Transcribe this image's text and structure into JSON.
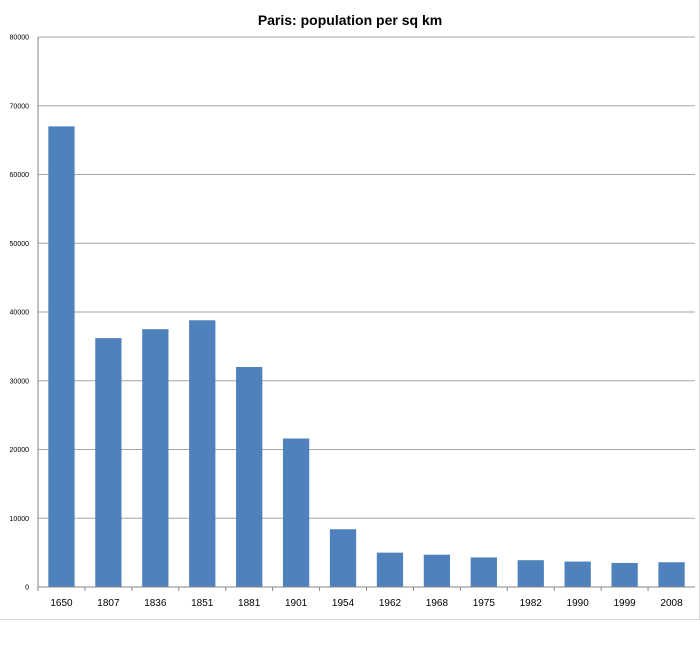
{
  "chart_data": {
    "type": "bar",
    "title": "Paris: population per sq km",
    "xlabel": "",
    "ylabel": "",
    "categories": [
      "1650",
      "1807",
      "1836",
      "1851",
      "1881",
      "1901",
      "1954",
      "1962",
      "1968",
      "1975",
      "1982",
      "1990",
      "1999",
      "2008"
    ],
    "values": [
      67000,
      36200,
      37500,
      38800,
      32000,
      21600,
      8400,
      5000,
      4700,
      4300,
      3900,
      3700,
      3500,
      3600
    ],
    "ylim": [
      0,
      80000
    ],
    "yticks": [
      "0",
      "10000",
      "20000",
      "30000",
      "40000",
      "50000",
      "60000",
      "70000",
      "80000"
    ],
    "grid": true,
    "legend": "none",
    "bar_color": "#4f81bd",
    "grid_color": "#a6a6a6"
  }
}
